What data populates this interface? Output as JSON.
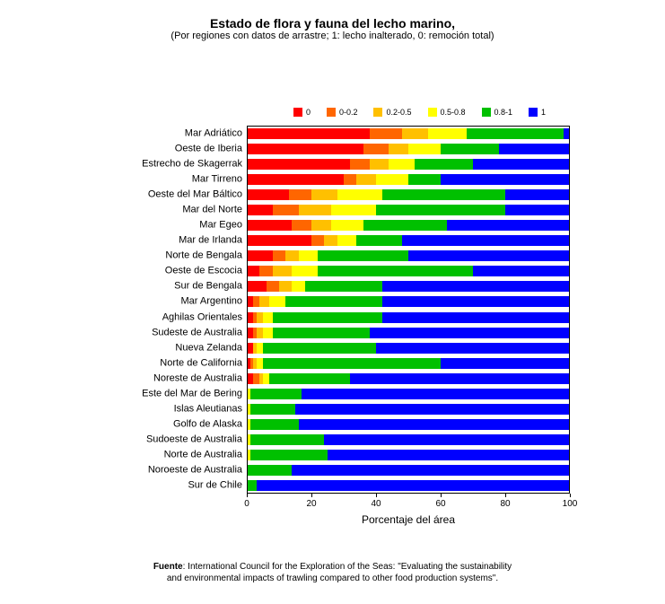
{
  "title": {
    "main": "Estado de flora y fauna del lecho marino,",
    "sub": "(Por regiones con datos de arrastre; 1: lecho inalterado, 0: remoción total)",
    "main_fontsize": 14,
    "sub_fontsize": 11
  },
  "chart": {
    "type": "stacked-horizontal-bar",
    "background_color": "#ffffff",
    "plot_border_color": "#000000",
    "xlabel": "Porcentaje del área",
    "xlim": [
      0,
      100
    ],
    "xtick_step": 20,
    "xticks": [
      0,
      20,
      40,
      60,
      80,
      100
    ],
    "bar_gap_ratio": 0.3,
    "legend": {
      "items": [
        {
          "label": "0",
          "color": "#ff0000"
        },
        {
          "label": "0-0.2",
          "color": "#ff6600"
        },
        {
          "label": "0.2-0.5",
          "color": "#ffc000"
        },
        {
          "label": "0.5-0.8",
          "color": "#ffff00"
        },
        {
          "label": "0.8-1",
          "color": "#00c000"
        },
        {
          "label": "1",
          "color": "#0000ff"
        }
      ],
      "fontsize": 9
    },
    "categories": [
      "Mar Adriático",
      "Oeste de Iberia",
      "Estrecho de Skagerrak",
      "Mar Tirreno",
      "Oeste del Mar Báltico",
      "Mar del Norte",
      "Mar Egeo",
      "Mar de Irlanda",
      "Norte de Bengala",
      "Oeste de Escocia",
      "Sur de Bengala",
      "Mar Argentino",
      "Aghilas Orientales",
      "Sudeste de Australia",
      "Nueva Zelanda",
      "Norte de California",
      "Noreste de Australia",
      "Este del Mar de Bering",
      "Islas Aleutianas",
      "Golfo de Alaska",
      "Sudoeste de Australia",
      "Norte de Australia",
      "Noroeste de Australia",
      "Sur de Chile"
    ],
    "series_order": [
      "0",
      "0-0.2",
      "0.2-0.5",
      "0.5-0.8",
      "0.8-1",
      "1"
    ],
    "data": [
      [
        38,
        10,
        8,
        12,
        30,
        2
      ],
      [
        36,
        8,
        6,
        10,
        18,
        22
      ],
      [
        32,
        6,
        6,
        8,
        18,
        30
      ],
      [
        30,
        4,
        6,
        10,
        10,
        40
      ],
      [
        13,
        7,
        8,
        14,
        38,
        20
      ],
      [
        8,
        8,
        10,
        14,
        40,
        20
      ],
      [
        14,
        6,
        6,
        10,
        26,
        38
      ],
      [
        20,
        4,
        4,
        6,
        14,
        52
      ],
      [
        8,
        4,
        4,
        6,
        28,
        50
      ],
      [
        4,
        4,
        6,
        8,
        48,
        30
      ],
      [
        6,
        4,
        4,
        4,
        24,
        58
      ],
      [
        2,
        2,
        3,
        5,
        30,
        58
      ],
      [
        2,
        1,
        2,
        3,
        34,
        58
      ],
      [
        2,
        1,
        2,
        3,
        30,
        62
      ],
      [
        2,
        0,
        1,
        2,
        35,
        60
      ],
      [
        1,
        1,
        1,
        2,
        55,
        40
      ],
      [
        2,
        2,
        1,
        2,
        25,
        68
      ],
      [
        0,
        0,
        0,
        1,
        16,
        83
      ],
      [
        0,
        0,
        0,
        1,
        14,
        85
      ],
      [
        0,
        0,
        0,
        1,
        15,
        84
      ],
      [
        0,
        0,
        0,
        1,
        23,
        76
      ],
      [
        0,
        0,
        0,
        1,
        24,
        75
      ],
      [
        0,
        0,
        0,
        0,
        14,
        86
      ],
      [
        0,
        0,
        0,
        0,
        3,
        97
      ]
    ],
    "label_fontsize": 11,
    "tick_fontsize": 10
  },
  "footer": {
    "label": "Fuente",
    "text1": ": International Council for the Exploration of the Seas: \"Evaluating the sustainability",
    "text2": "and environmental impacts of trawling compared to other food production systems\"."
  }
}
